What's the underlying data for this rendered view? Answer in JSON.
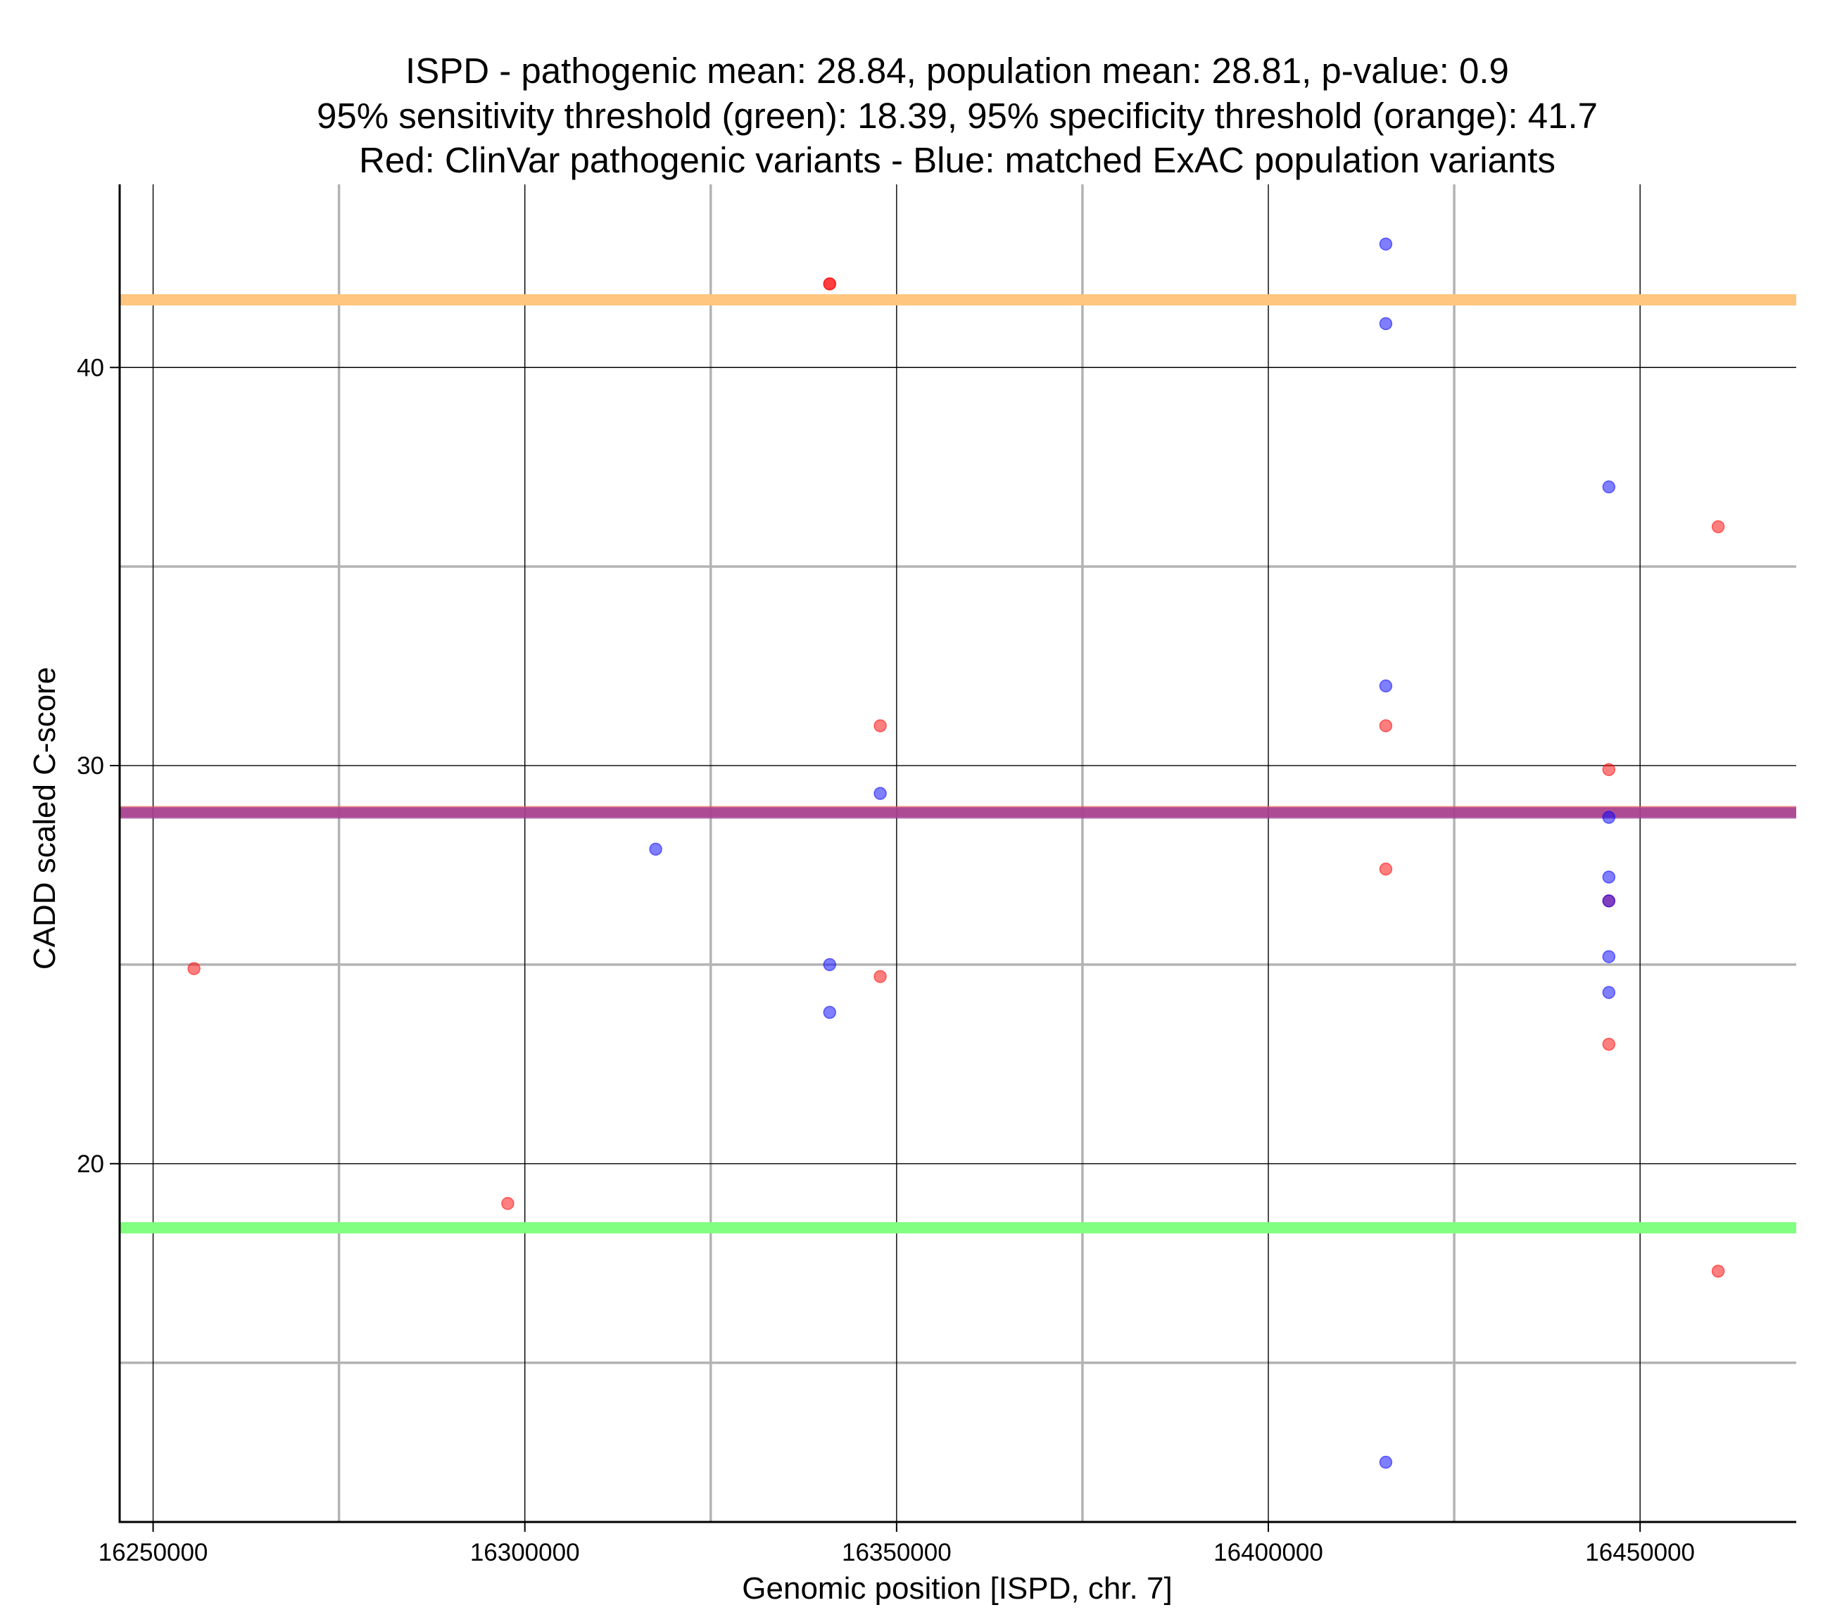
{
  "chart_data": {
    "type": "scatter",
    "title_lines": [
      "ISPD - pathogenic mean: 28.84, population mean: 28.81, p-value: 0.9",
      "95% sensitivity threshold (green): 18.39, 95% specificity threshold (orange): 41.7",
      "Red: ClinVar pathogenic variants - Blue: matched ExAC population variants"
    ],
    "xlabel": "Genomic position [ISPD, chr. 7]",
    "ylabel": "CADD scaled C-score",
    "xlim": [
      16245500,
      16471000
    ],
    "ylim": [
      11.0,
      44.6
    ],
    "x_major_ticks": [
      16250000,
      16300000,
      16350000,
      16400000,
      16450000
    ],
    "x_minor_gridlines": [
      16275000,
      16325000,
      16375000,
      16425000
    ],
    "y_major_ticks": [
      20,
      30,
      40
    ],
    "y_minor_gridlines": [
      15,
      25,
      35
    ],
    "x_tick_labels": [
      "16250000",
      "16300000",
      "16350000",
      "16400000",
      "16450000"
    ],
    "y_tick_labels": [
      "20",
      "30",
      "40"
    ],
    "hlines": [
      {
        "name": "specificity-threshold",
        "value": 41.7,
        "color": "#ffc680"
      },
      {
        "name": "pathogenic-mean",
        "value": 28.84,
        "color": "#e05a5a"
      },
      {
        "name": "population-mean",
        "value": 28.81,
        "color": "#9a3a9a"
      },
      {
        "name": "sensitivity-threshold",
        "value": 18.39,
        "color": "#80ff80"
      }
    ],
    "series": [
      {
        "name": "ClinVar pathogenic variants",
        "color": "#ff0000",
        "points": [
          {
            "x": 16255500,
            "y": 24.9
          },
          {
            "x": 16297700,
            "y": 19.0
          },
          {
            "x": 16341000,
            "y": 42.1
          },
          {
            "x": 16341000,
            "y": 42.1
          },
          {
            "x": 16347800,
            "y": 31.0
          },
          {
            "x": 16347800,
            "y": 24.7
          },
          {
            "x": 16415800,
            "y": 31.0
          },
          {
            "x": 16415800,
            "y": 27.4
          },
          {
            "x": 16445800,
            "y": 29.9
          },
          {
            "x": 16445800,
            "y": 26.6
          },
          {
            "x": 16445800,
            "y": 23.0
          },
          {
            "x": 16460500,
            "y": 36.0
          },
          {
            "x": 16460500,
            "y": 17.3
          }
        ]
      },
      {
        "name": "matched ExAC population variants",
        "color": "#0000ff",
        "points": [
          {
            "x": 16317600,
            "y": 27.9
          },
          {
            "x": 16341000,
            "y": 25.0
          },
          {
            "x": 16341000,
            "y": 23.8
          },
          {
            "x": 16347800,
            "y": 29.3
          },
          {
            "x": 16415800,
            "y": 43.1
          },
          {
            "x": 16415800,
            "y": 41.1
          },
          {
            "x": 16415800,
            "y": 32.0
          },
          {
            "x": 16415800,
            "y": 12.5
          },
          {
            "x": 16445800,
            "y": 37.0
          },
          {
            "x": 16445800,
            "y": 28.7
          },
          {
            "x": 16445800,
            "y": 27.2
          },
          {
            "x": 16445800,
            "y": 26.6
          },
          {
            "x": 16445800,
            "y": 25.2
          },
          {
            "x": 16445800,
            "y": 24.3
          }
        ]
      }
    ]
  }
}
